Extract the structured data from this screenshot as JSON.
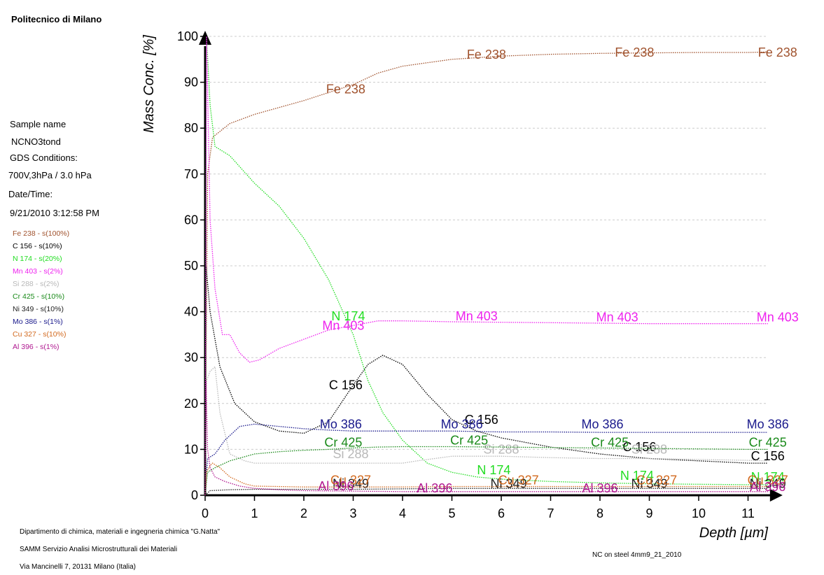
{
  "header": {
    "institution": "Politecnico di Milano"
  },
  "sample_info": {
    "sample_name_label": "Sample name",
    "sample_name": "NCNO3tond",
    "gds_label": "GDS Conditions:",
    "gds_value": "700V,3hPa / 3.0 hPa",
    "datetime_label": "Date/Time:",
    "datetime_value": "9/21/2010 3:12:58 PM"
  },
  "legend": [
    {
      "text": "Fe 238 - s(100%)",
      "color": "#a0522d"
    },
    {
      "text": "C 156 - s(10%)",
      "color": "#000000"
    },
    {
      "text": "N 174 - s(20%)",
      "color": "#22dd22"
    },
    {
      "text": "Mn 403 - s(2%)",
      "color": "#ee22ee"
    },
    {
      "text": "Si 288 - s(2%)",
      "color": "#b8b8b8"
    },
    {
      "text": "Cr 425 - s(10%)",
      "color": "#1a8a1a"
    },
    {
      "text": "Ni 349 - s(10%)",
      "color": "#222222"
    },
    {
      "text": "Mo 386 - s(1%)",
      "color": "#1a1a8c"
    },
    {
      "text": "Cu 327 - s(10%)",
      "color": "#d2691e"
    },
    {
      "text": "Al 396 - s(1%)",
      "color": "#b01890"
    }
  ],
  "footer": {
    "line1": "Dipartimento di chimica, materiali e ingegneria chimica \"G.Natta\"",
    "line2": "SAMM Servizio Analisi Microstrutturali dei Materiali",
    "line3": "Via Mancinelli 7, 20131 Milano (Italia)",
    "file": "NC on steel 4mm9_21_2010"
  },
  "chart_data": {
    "type": "line",
    "title": "",
    "xlabel": "Depth [µm]",
    "ylabel": "Mass Conc. [%]",
    "xlim": [
      0,
      11.7
    ],
    "ylim": [
      0,
      100
    ],
    "xticks": [
      0,
      1,
      2,
      3,
      4,
      5,
      6,
      7,
      8,
      9,
      10,
      11
    ],
    "yticks": [
      0,
      10,
      20,
      30,
      40,
      50,
      60,
      70,
      80,
      90,
      100
    ],
    "grid": true,
    "series": [
      {
        "name": "Fe 238",
        "color": "#a0522d",
        "x": [
          0,
          0.05,
          0.15,
          0.5,
          1,
          2,
          3,
          3.5,
          4,
          5,
          6,
          7,
          8,
          9,
          10,
          11,
          11.4
        ],
        "y": [
          0,
          70,
          78,
          81,
          83,
          86,
          89.5,
          92,
          93.5,
          95,
          95.7,
          96.1,
          96.3,
          96.4,
          96.5,
          96.5,
          96.6
        ],
        "labels": [
          {
            "x": 2.85,
            "y": 88.5
          },
          {
            "x": 5.7,
            "y": 96
          },
          {
            "x": 8.7,
            "y": 96.5
          },
          {
            "x": 11.6,
            "y": 96.5
          }
        ]
      },
      {
        "name": "C 156",
        "color": "#000000",
        "x": [
          0,
          0.02,
          0.1,
          0.3,
          0.6,
          1,
          1.5,
          2,
          2.5,
          3,
          3.3,
          3.6,
          4,
          4.5,
          5,
          5.5,
          6,
          7,
          8,
          9,
          10,
          11,
          11.4
        ],
        "y": [
          0,
          50,
          40,
          28,
          20,
          16,
          14,
          13.5,
          16,
          24,
          28.5,
          30.5,
          28.5,
          22,
          16.5,
          14,
          12.5,
          10.5,
          9,
          8,
          7.5,
          7,
          7
        ],
        "labels": [
          {
            "x": 2.85,
            "y": 24
          },
          {
            "x": 5.6,
            "y": 16.5
          },
          {
            "x": 8.8,
            "y": 10.5
          },
          {
            "x": 11.4,
            "y": 8.5
          }
        ]
      },
      {
        "name": "N 174",
        "color": "#22dd22",
        "x": [
          0,
          0.03,
          0.1,
          0.2,
          0.5,
          1,
          1.5,
          2,
          2.5,
          3,
          3.3,
          3.6,
          4,
          4.5,
          5,
          5.5,
          6,
          7,
          8,
          9,
          10,
          11,
          11.4
        ],
        "y": [
          0,
          100,
          85,
          76,
          74,
          68,
          63,
          56,
          47,
          35,
          25,
          18,
          12,
          7,
          5,
          4,
          3.5,
          3,
          2.7,
          2.5,
          2.4,
          2.3,
          2.3
        ],
        "labels": [
          {
            "x": 2.9,
            "y": 39
          },
          {
            "x": 5.85,
            "y": 5.5
          },
          {
            "x": 8.75,
            "y": 4.3
          },
          {
            "x": 11.4,
            "y": 4
          }
        ]
      },
      {
        "name": "Mn 403",
        "color": "#ee22ee",
        "x": [
          0,
          0.03,
          0.1,
          0.2,
          0.35,
          0.5,
          0.7,
          0.9,
          1.1,
          1.5,
          2,
          2.5,
          3,
          3.5,
          4,
          5,
          6,
          7,
          8,
          9,
          10,
          11,
          11.4
        ],
        "y": [
          0,
          100,
          60,
          45,
          35,
          35,
          31,
          29,
          29.5,
          32,
          34,
          36,
          37,
          38,
          38,
          37.8,
          37.7,
          37.6,
          37.5,
          37.4,
          37.4,
          37.4,
          37.4
        ],
        "labels": [
          {
            "x": 2.8,
            "y": 37
          },
          {
            "x": 5.5,
            "y": 39
          },
          {
            "x": 8.35,
            "y": 38.8
          },
          {
            "x": 11.6,
            "y": 38.8
          }
        ]
      },
      {
        "name": "Si 288",
        "color": "#b8b8b8",
        "x": [
          0,
          0.03,
          0.1,
          0.2,
          0.3,
          0.5,
          0.8,
          1,
          1.5,
          2,
          2.5,
          3,
          3.5,
          4,
          4.3,
          5,
          6,
          7,
          8,
          9,
          10,
          11,
          11.4
        ],
        "y": [
          0,
          25,
          27,
          28,
          18,
          9,
          7.5,
          7,
          7,
          7,
          7,
          7,
          7,
          7,
          7.5,
          8.5,
          8.5,
          8.2,
          8,
          8,
          7.8,
          7.6,
          7.5
        ],
        "labels": [
          {
            "x": 2.95,
            "y": 9
          },
          {
            "x": 6.0,
            "y": 10
          },
          {
            "x": 9.0,
            "y": 10
          }
        ]
      },
      {
        "name": "Cr 425",
        "color": "#1a8a1a",
        "x": [
          0,
          0.05,
          0.2,
          0.5,
          1,
          1.5,
          2,
          2.5,
          3,
          3.5,
          4,
          5,
          6,
          7,
          8,
          9,
          10,
          11,
          11.4
        ],
        "y": [
          0,
          5,
          6,
          7.5,
          9,
          9.5,
          9.8,
          10,
          10.3,
          10.5,
          10.6,
          10.6,
          10.5,
          10.4,
          10.3,
          10.2,
          10.1,
          10,
          10
        ],
        "labels": [
          {
            "x": 2.8,
            "y": 11.5
          },
          {
            "x": 5.35,
            "y": 12
          },
          {
            "x": 8.2,
            "y": 11.5
          },
          {
            "x": 11.4,
            "y": 11.5
          }
        ]
      },
      {
        "name": "Ni 349",
        "color": "#222222",
        "x": [
          0,
          0.1,
          0.5,
          1,
          2,
          3,
          4,
          5,
          6,
          7,
          8,
          9,
          10,
          11,
          11.4
        ],
        "y": [
          0,
          1,
          1.2,
          1.3,
          1.3,
          1.3,
          1.4,
          1.5,
          1.5,
          1.5,
          1.5,
          1.5,
          1.5,
          1.5,
          1.5
        ],
        "labels": [
          {
            "x": 2.95,
            "y": 2.5
          },
          {
            "x": 6.15,
            "y": 2.5
          },
          {
            "x": 9.0,
            "y": 2.5
          },
          {
            "x": 11.4,
            "y": 2.5
          }
        ]
      },
      {
        "name": "Mo 386",
        "color": "#1a1a8c",
        "x": [
          0,
          0.05,
          0.2,
          0.4,
          0.7,
          1,
          1.5,
          2,
          2.5,
          3,
          3.5,
          4,
          5,
          6,
          7,
          8,
          9,
          10,
          11,
          11.4
        ],
        "y": [
          0,
          8,
          9,
          12,
          15,
          15.5,
          15,
          14.5,
          14.2,
          14,
          14,
          14,
          14,
          13.8,
          13.8,
          13.7,
          13.7,
          13.7,
          13.7,
          13.7
        ],
        "labels": [
          {
            "x": 2.75,
            "y": 15.5
          },
          {
            "x": 5.2,
            "y": 15.5
          },
          {
            "x": 8.05,
            "y": 15.5
          },
          {
            "x": 11.4,
            "y": 15.5
          }
        ]
      },
      {
        "name": "Cu 327",
        "color": "#d2691e",
        "x": [
          0,
          0.03,
          0.1,
          0.15,
          0.3,
          0.5,
          0.8,
          1,
          2,
          3,
          4,
          5,
          6,
          7,
          8,
          9,
          10,
          11,
          11.4
        ],
        "y": [
          0,
          5,
          6.5,
          7,
          6,
          4,
          2.5,
          2,
          1.8,
          1.8,
          1.8,
          1.9,
          1.9,
          1.9,
          1.9,
          1.9,
          1.9,
          1.9,
          1.9
        ],
        "labels": [
          {
            "x": 2.95,
            "y": 3.3
          },
          {
            "x": 6.35,
            "y": 3.3
          },
          {
            "x": 9.15,
            "y": 3.3
          },
          {
            "x": 11.4,
            "y": 3.3
          }
        ]
      },
      {
        "name": "Al 396",
        "color": "#b01890",
        "x": [
          0,
          0.02,
          0.05,
          0.1,
          0.2,
          0.4,
          0.7,
          1,
          1.5,
          2,
          3,
          4,
          5,
          6,
          7,
          8,
          9,
          10,
          11,
          11.4
        ],
        "y": [
          0,
          25,
          10,
          6,
          4,
          3,
          2,
          1.5,
          1.2,
          1,
          0.9,
          0.8,
          0.8,
          0.8,
          0.8,
          0.8,
          0.8,
          0.8,
          0.8,
          0.8
        ],
        "labels": [
          {
            "x": 2.65,
            "y": 2
          },
          {
            "x": 4.65,
            "y": 1.5
          },
          {
            "x": 8.0,
            "y": 1.5
          },
          {
            "x": 11.4,
            "y": 1.8
          }
        ]
      }
    ]
  }
}
